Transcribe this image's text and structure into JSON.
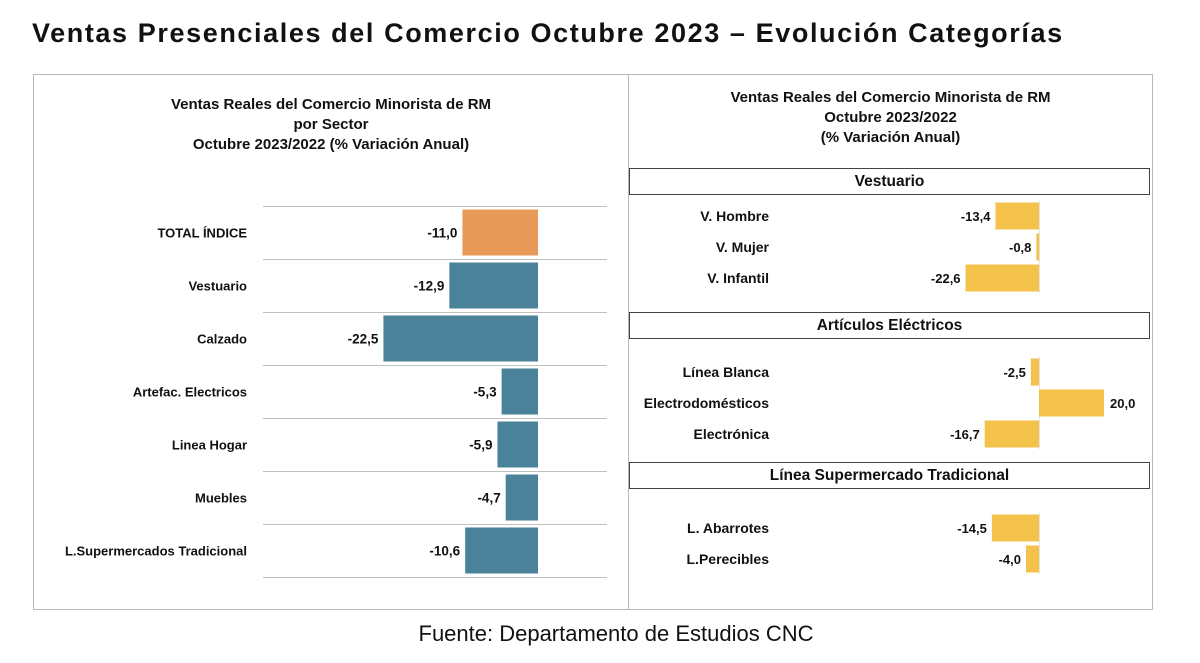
{
  "title": "Ventas Presenciales del Comercio Octubre 2023 – Evolución Categorías",
  "left_panel": {
    "title_lines": [
      "Ventas Reales del Comercio Minorista de RM",
      "por Sector",
      "Octubre 2023/2022 (% Variación Anual)"
    ]
  },
  "right_panel": {
    "title_lines": [
      "Ventas Reales del Comercio Minorista de RM",
      "Octubre 2023/2022",
      "(% Variación Anual)"
    ],
    "section_titles": [
      "Vestuario",
      "Artículos Eléctricos",
      "Línea Supermercado Tradicional"
    ]
  },
  "source": "Fuente: Departamento de Estudios CNC",
  "colors": {
    "total_bar": "#e89b58",
    "sector_bar": "#4a8299",
    "subcategory_bar": "#f4c24a",
    "gridline": "#bfbfbf"
  },
  "chart_data": [
    {
      "type": "bar",
      "orientation": "horizontal",
      "title": "Ventas Reales del Comercio Minorista de RM por Sector Octubre 2023/2022 (% Variación Anual)",
      "categories": [
        "TOTAL ÍNDICE",
        "Vestuario",
        "Calzado",
        "Artefac. Electricos",
        "Linea Hogar",
        "Muebles",
        "L.Supermercados Tradicional"
      ],
      "values": [
        -11.0,
        -12.9,
        -22.5,
        -5.3,
        -5.9,
        -4.7,
        -10.6
      ],
      "labels": [
        "-11,0",
        "-12,9",
        "-22,5",
        "-5,3",
        "-5,9",
        "-4,7",
        "-10,6"
      ],
      "highlight": "TOTAL ÍNDICE",
      "grid": true
    },
    {
      "type": "bar",
      "orientation": "horizontal",
      "title": "Ventas Reales del Comercio Minorista de RM Octubre 2023/2022 (% Variación Anual)",
      "groups": [
        {
          "name": "Vestuario",
          "categories": [
            "V. Hombre",
            "V. Mujer",
            "V. Infantil"
          ],
          "values": [
            -13.4,
            -0.8,
            -22.6
          ],
          "labels": [
            "-13,4",
            "-0,8",
            "-22,6"
          ]
        },
        {
          "name": "Artículos Eléctricos",
          "categories": [
            "Línea Blanca",
            "Electrodomésticos",
            "Electrónica"
          ],
          "values": [
            -2.5,
            20.0,
            -16.7
          ],
          "labels": [
            "-2,5",
            "20,0",
            "-16,7"
          ]
        },
        {
          "name": "Línea Supermercado Tradicional",
          "categories": [
            "L. Abarrotes",
            "L.Perecibles"
          ],
          "values": [
            -14.5,
            -4.0
          ],
          "labels": [
            "-14,5",
            "-4,0"
          ]
        }
      ]
    }
  ]
}
